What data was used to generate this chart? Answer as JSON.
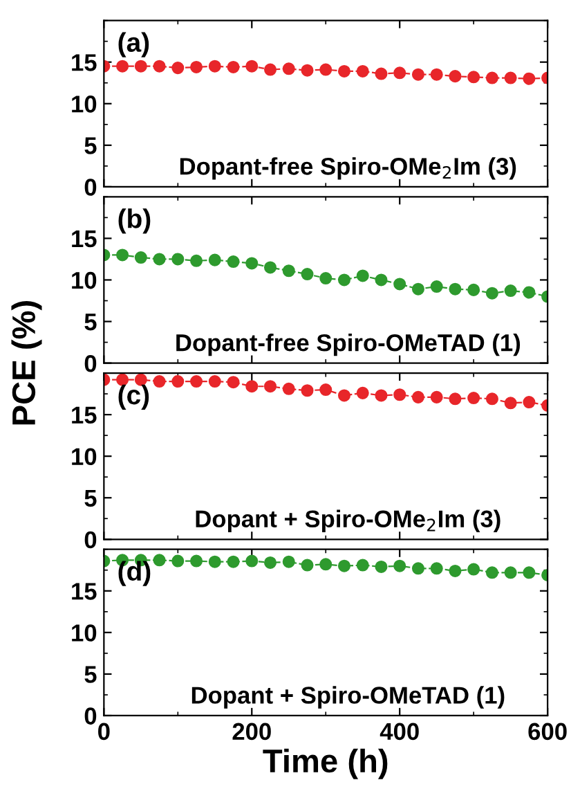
{
  "chart_data": [
    {
      "type": "line",
      "x": [
        0,
        25,
        50,
        75,
        100,
        125,
        150,
        175,
        200,
        225,
        250,
        275,
        300,
        325,
        350,
        375,
        400,
        425,
        450,
        475,
        500,
        525,
        550,
        575,
        600
      ],
      "series": [
        {
          "color": "#e8262a",
          "values": [
            14.5,
            14.5,
            14.5,
            14.5,
            14.3,
            14.4,
            14.5,
            14.4,
            14.5,
            14.1,
            14.2,
            14.0,
            14.1,
            13.9,
            13.9,
            13.6,
            13.7,
            13.5,
            13.5,
            13.3,
            13.2,
            13.1,
            13.1,
            13.0,
            13.1
          ]
        }
      ],
      "xlim": [
        0,
        600
      ],
      "xticks": [
        0,
        200,
        400,
        600
      ],
      "ylim": [
        0,
        20
      ],
      "yticks": [
        0,
        5,
        10,
        15
      ],
      "tick_labels": "y",
      "marker": "circle",
      "line_style": "dashed",
      "annotations": [
        "(a)",
        "Dopant-free Spiro-OMe$_{2}$Im (3)"
      ]
    },
    {
      "type": "line",
      "x": [
        0,
        25,
        50,
        75,
        100,
        125,
        150,
        175,
        200,
        225,
        250,
        275,
        300,
        325,
        350,
        375,
        400,
        425,
        450,
        475,
        500,
        525,
        550,
        575,
        600
      ],
      "series": [
        {
          "color": "#2e9a2e",
          "values": [
            13.0,
            13.0,
            12.7,
            12.5,
            12.5,
            12.3,
            12.4,
            12.2,
            12.0,
            11.5,
            11.1,
            10.7,
            10.2,
            10.0,
            10.5,
            10.0,
            9.5,
            8.9,
            9.2,
            8.9,
            8.8,
            8.4,
            8.7,
            8.5,
            8.0
          ]
        }
      ],
      "xlim": [
        0,
        600
      ],
      "xticks": [
        0,
        200,
        400,
        600
      ],
      "ylim": [
        0,
        20
      ],
      "yticks": [
        0,
        5,
        10,
        15
      ],
      "tick_labels": "y",
      "marker": "circle",
      "line_style": "dashed",
      "ylabel": "PCE (%)",
      "annotations": [
        "(b)",
        "Dopant-free Spiro-OMeTAD (1)"
      ]
    },
    {
      "type": "line",
      "x": [
        0,
        25,
        50,
        75,
        100,
        125,
        150,
        175,
        200,
        225,
        250,
        275,
        300,
        325,
        350,
        375,
        400,
        425,
        450,
        475,
        500,
        525,
        550,
        575,
        600
      ],
      "series": [
        {
          "color": "#e8262a",
          "values": [
            19.2,
            19.2,
            19.2,
            19.0,
            19.0,
            19.0,
            19.0,
            18.9,
            18.4,
            18.4,
            18.1,
            17.9,
            18.0,
            17.3,
            17.6,
            17.3,
            17.4,
            17.1,
            17.1,
            16.9,
            17.0,
            16.9,
            16.4,
            16.5,
            16.1
          ]
        }
      ],
      "xlim": [
        0,
        600
      ],
      "xticks": [
        0,
        200,
        400,
        600
      ],
      "ylim": [
        0,
        20
      ],
      "yticks": [
        0,
        5,
        10,
        15
      ],
      "tick_labels": "y",
      "marker": "circle",
      "line_style": "dashed",
      "annotations": [
        "(c)",
        "Dopant + Spiro-OMe$_{2}$Im (3)"
      ]
    },
    {
      "type": "line",
      "x": [
        0,
        25,
        50,
        75,
        100,
        125,
        150,
        175,
        200,
        225,
        250,
        275,
        300,
        325,
        350,
        375,
        400,
        425,
        450,
        475,
        500,
        525,
        550,
        575,
        600
      ],
      "series": [
        {
          "color": "#2e9a2e",
          "values": [
            18.6,
            18.7,
            18.7,
            18.7,
            18.6,
            18.6,
            18.5,
            18.5,
            18.6,
            18.4,
            18.5,
            18.1,
            18.2,
            18.0,
            18.1,
            17.9,
            18.0,
            17.7,
            17.7,
            17.4,
            17.6,
            17.2,
            17.2,
            17.2,
            16.9
          ]
        }
      ],
      "xlim": [
        0,
        600
      ],
      "xticks": [
        0,
        200,
        400,
        600
      ],
      "ylim": [
        0,
        20
      ],
      "yticks": [
        0,
        5,
        10,
        15
      ],
      "marker": "circle",
      "line_style": "dashed",
      "xlabel": "Time (h)",
      "annotations": [
        "(d)",
        "Dopant + Spiro-OMeTAD (1)"
      ]
    }
  ]
}
